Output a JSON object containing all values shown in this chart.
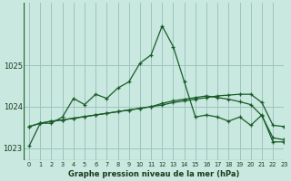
{
  "title": "Graphe pression niveau de la mer (hPa)",
  "background_color": "#c8e8e0",
  "grid_color": "#9ec4bc",
  "line_color": "#1a5c28",
  "xlim": [
    -0.5,
    23
  ],
  "ylim": [
    1022.7,
    1026.5
  ],
  "yticks": [
    1023,
    1024,
    1025
  ],
  "xticks": [
    0,
    1,
    2,
    3,
    4,
    5,
    6,
    7,
    8,
    9,
    10,
    11,
    12,
    13,
    14,
    15,
    16,
    17,
    18,
    19,
    20,
    21,
    22,
    23
  ],
  "line1": [
    1023.05,
    1023.6,
    1023.6,
    1023.75,
    1024.2,
    1024.05,
    1024.3,
    1024.2,
    1024.45,
    1024.6,
    1025.05,
    1025.25,
    1025.95,
    1025.45,
    1024.6,
    1023.75,
    1023.8,
    1023.75,
    1023.65,
    1023.75,
    1023.55,
    1023.8,
    1023.15,
    1023.15
  ],
  "line2": [
    1023.52,
    1023.6,
    1023.65,
    1023.68,
    1023.72,
    1023.76,
    1023.8,
    1023.84,
    1023.88,
    1023.92,
    1023.96,
    1024.0,
    1024.04,
    1024.1,
    1024.14,
    1024.18,
    1024.22,
    1024.26,
    1024.28,
    1024.3,
    1024.3,
    1024.1,
    1023.55,
    1023.52
  ],
  "line3": [
    1023.52,
    1023.6,
    1023.65,
    1023.68,
    1023.72,
    1023.76,
    1023.8,
    1023.84,
    1023.88,
    1023.92,
    1023.96,
    1024.0,
    1024.08,
    1024.14,
    1024.18,
    1024.22,
    1024.26,
    1024.22,
    1024.18,
    1024.12,
    1024.05,
    1023.78,
    1023.25,
    1023.2
  ]
}
